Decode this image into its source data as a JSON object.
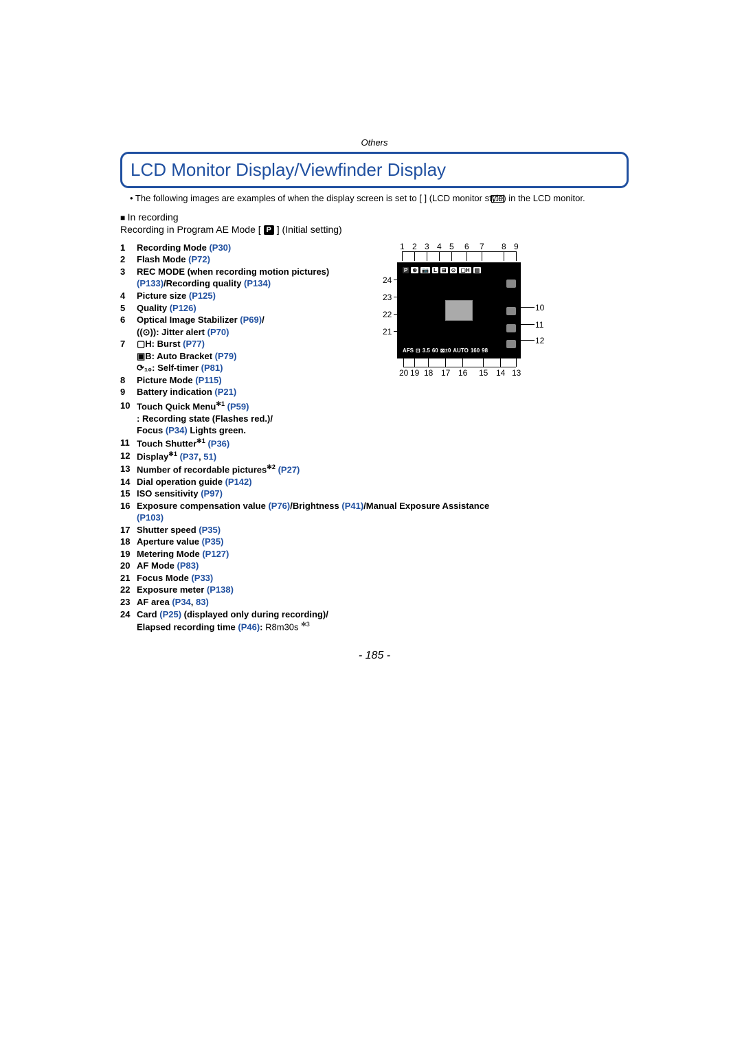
{
  "section": "Others",
  "title": "LCD Monitor Display/Viewfinder Display",
  "intro": "• The following images are examples of when the display screen is set to [        ] (LCD monitor style) in the LCD monitor.",
  "sub1_prefix": "■ ",
  "sub1": "In recording",
  "sub2_before": "Recording in Program AE Mode [",
  "sub2_mode": "P",
  "sub2_after": "] (Initial setting)",
  "items": [
    {
      "n": "1",
      "text": "Recording Mode ",
      "refs": [
        "(P30)"
      ]
    },
    {
      "n": "2",
      "text": "Flash Mode ",
      "refs": [
        "(P72)"
      ]
    },
    {
      "n": "3",
      "text": "REC MODE (when recording motion pictures) ",
      "mid": "/Recording quality ",
      "refs": [
        "(P133)",
        "(P134)"
      ]
    },
    {
      "n": "4",
      "text": "Picture size ",
      "refs": [
        "(P125)"
      ]
    },
    {
      "n": "5",
      "text": "Quality ",
      "refs": [
        "(P126)"
      ]
    },
    {
      "n": "6",
      "text": "Optical Image Stabilizer ",
      "refs": [
        "(P69)"
      ],
      "extra": "/",
      "sub": [
        {
          "pre": "((⊙)): ",
          "text": "Jitter alert ",
          "refs": [
            "(P70)"
          ]
        }
      ]
    },
    {
      "n": "7",
      "pre": "▢H: ",
      "text": "Burst ",
      "refs": [
        "(P77)"
      ],
      "sub": [
        {
          "pre": "▣B: ",
          "text": "Auto Bracket ",
          "refs": [
            "(P79)"
          ]
        },
        {
          "pre": "⟳₁₀: ",
          "text": "Self-timer ",
          "refs": [
            "(P81)"
          ]
        }
      ]
    },
    {
      "n": "8",
      "text": "Picture Mode ",
      "refs": [
        "(P115)"
      ]
    },
    {
      "n": "9",
      "text": "Battery indication ",
      "refs": [
        "(P21)"
      ]
    }
  ],
  "continued": [
    {
      "n": "10",
      "segments": [
        {
          "t": "Touch Quick Menu",
          "sup": "✻1"
        },
        {
          "t": " "
        },
        {
          "ref": "(P59)"
        }
      ],
      "sub": [
        {
          "segments": [
            {
              "t": ": Recording state (Flashes red.)/"
            }
          ]
        },
        {
          "segments": [
            {
              "t": "Focus "
            },
            {
              "ref": "(P34)"
            },
            {
              "t": " Lights green."
            }
          ]
        }
      ]
    },
    {
      "n": "11",
      "segments": [
        {
          "t": "Touch Shutter",
          "sup": "✻1"
        },
        {
          "t": " "
        },
        {
          "ref": "(P36)"
        }
      ]
    },
    {
      "n": "12",
      "segments": [
        {
          "t": "Display",
          "sup": "✻1"
        },
        {
          "t": " "
        },
        {
          "ref": "(P37"
        },
        {
          "t": ", "
        },
        {
          "ref": "51)"
        }
      ]
    },
    {
      "n": "13",
      "segments": [
        {
          "t": "Number of recordable pictures",
          "sup": "✻2"
        },
        {
          "t": " "
        },
        {
          "ref": "(P27)"
        }
      ]
    },
    {
      "n": "14",
      "segments": [
        {
          "t": "Dial operation guide "
        },
        {
          "ref": "(P142)"
        }
      ]
    },
    {
      "n": "15",
      "segments": [
        {
          "t": "ISO sensitivity "
        },
        {
          "ref": "(P97)"
        }
      ]
    },
    {
      "n": "16",
      "segments": [
        {
          "t": "Exposure compensation value "
        },
        {
          "ref": "(P76)"
        },
        {
          "t": "/Brightness "
        },
        {
          "ref": "(P41)"
        },
        {
          "t": "/Manual Exposure Assistance "
        }
      ],
      "sub": [
        {
          "segments": [
            {
              "ref": "(P103)"
            }
          ]
        }
      ]
    },
    {
      "n": "17",
      "segments": [
        {
          "t": "Shutter speed "
        },
        {
          "ref": "(P35)"
        }
      ]
    },
    {
      "n": "18",
      "segments": [
        {
          "t": "Aperture value "
        },
        {
          "ref": "(P35)"
        }
      ]
    },
    {
      "n": "19",
      "segments": [
        {
          "t": "Metering Mode "
        },
        {
          "ref": "(P127)"
        }
      ]
    },
    {
      "n": "20",
      "segments": [
        {
          "t": "AF Mode "
        },
        {
          "ref": "(P83)"
        }
      ]
    },
    {
      "n": "21",
      "segments": [
        {
          "t": "Focus Mode "
        },
        {
          "ref": "(P33)"
        }
      ]
    },
    {
      "n": "22",
      "segments": [
        {
          "t": "Exposure meter "
        },
        {
          "ref": "(P138)"
        }
      ]
    },
    {
      "n": "23",
      "segments": [
        {
          "t": "AF area "
        },
        {
          "ref": "(P34"
        },
        {
          "t": ", "
        },
        {
          "ref": "83)"
        }
      ]
    },
    {
      "n": "24",
      "segments": [
        {
          "t": "Card "
        },
        {
          "ref": "(P25)"
        },
        {
          "t": " (displayed only during recording)/"
        }
      ],
      "sub": [
        {
          "segments": [
            {
              "t": "Elapsed recording time "
            },
            {
              "ref": "(P46)"
            },
            {
              "t": ": "
            },
            {
              "plain": "R8m30s ",
              "sup": "✻3"
            }
          ]
        }
      ]
    }
  ],
  "diagram": {
    "top_numbers": [
      "1",
      "2",
      "3",
      "4",
      "5",
      "6",
      "7",
      "8",
      "9"
    ],
    "right_numbers": [
      "10",
      "11",
      "12"
    ],
    "left_numbers": [
      "24",
      "23",
      "22",
      "21"
    ],
    "bottom_numbers": [
      "20",
      "19",
      "18",
      "17",
      "16",
      "15",
      "14",
      "13"
    ],
    "bottom_text": [
      "AFS",
      "⊡",
      "3.5",
      "60",
      "⊠±0",
      "AUTO",
      "160",
      "98"
    ],
    "top_icons": [
      "P",
      "⊛",
      "📷",
      "L",
      "⊞",
      "⊙",
      "▢H",
      "▥"
    ]
  },
  "page_number": "- 185 -",
  "colors": {
    "link": "#2050a0",
    "frame": "#2050a0"
  }
}
